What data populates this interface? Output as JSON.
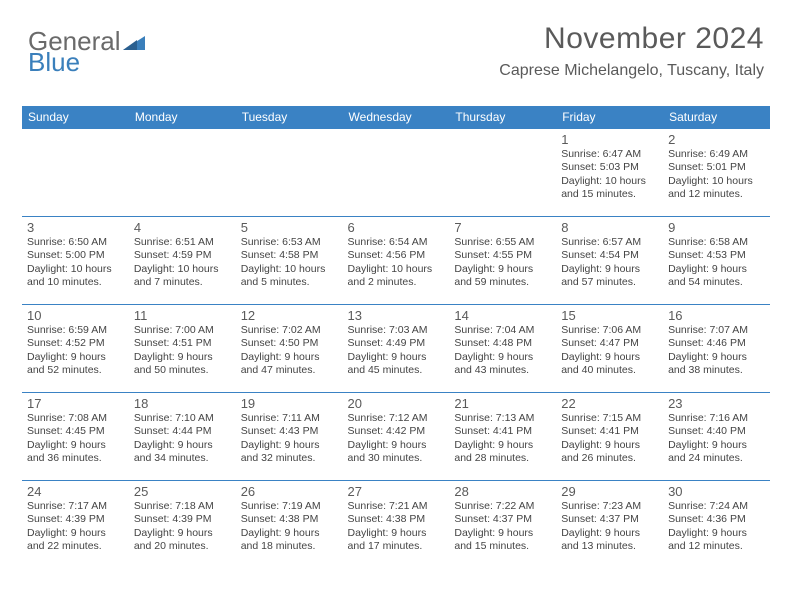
{
  "logo": {
    "text_gray": "General",
    "text_blue": "Blue"
  },
  "header": {
    "month_title": "November 2024",
    "location": "Caprese Michelangelo, Tuscany, Italy"
  },
  "colors": {
    "header_blue": "#3a82c4",
    "logo_blue": "#3a7fbb",
    "text_gray": "#5a5a5a",
    "body_text": "#444444",
    "background": "#ffffff"
  },
  "day_names": [
    "Sunday",
    "Monday",
    "Tuesday",
    "Wednesday",
    "Thursday",
    "Friday",
    "Saturday"
  ],
  "weeks": [
    [
      null,
      null,
      null,
      null,
      null,
      {
        "n": "1",
        "sr": "Sunrise: 6:47 AM",
        "ss": "Sunset: 5:03 PM",
        "dl": "Daylight: 10 hours and 15 minutes."
      },
      {
        "n": "2",
        "sr": "Sunrise: 6:49 AM",
        "ss": "Sunset: 5:01 PM",
        "dl": "Daylight: 10 hours and 12 minutes."
      }
    ],
    [
      {
        "n": "3",
        "sr": "Sunrise: 6:50 AM",
        "ss": "Sunset: 5:00 PM",
        "dl": "Daylight: 10 hours and 10 minutes."
      },
      {
        "n": "4",
        "sr": "Sunrise: 6:51 AM",
        "ss": "Sunset: 4:59 PM",
        "dl": "Daylight: 10 hours and 7 minutes."
      },
      {
        "n": "5",
        "sr": "Sunrise: 6:53 AM",
        "ss": "Sunset: 4:58 PM",
        "dl": "Daylight: 10 hours and 5 minutes."
      },
      {
        "n": "6",
        "sr": "Sunrise: 6:54 AM",
        "ss": "Sunset: 4:56 PM",
        "dl": "Daylight: 10 hours and 2 minutes."
      },
      {
        "n": "7",
        "sr": "Sunrise: 6:55 AM",
        "ss": "Sunset: 4:55 PM",
        "dl": "Daylight: 9 hours and 59 minutes."
      },
      {
        "n": "8",
        "sr": "Sunrise: 6:57 AM",
        "ss": "Sunset: 4:54 PM",
        "dl": "Daylight: 9 hours and 57 minutes."
      },
      {
        "n": "9",
        "sr": "Sunrise: 6:58 AM",
        "ss": "Sunset: 4:53 PM",
        "dl": "Daylight: 9 hours and 54 minutes."
      }
    ],
    [
      {
        "n": "10",
        "sr": "Sunrise: 6:59 AM",
        "ss": "Sunset: 4:52 PM",
        "dl": "Daylight: 9 hours and 52 minutes."
      },
      {
        "n": "11",
        "sr": "Sunrise: 7:00 AM",
        "ss": "Sunset: 4:51 PM",
        "dl": "Daylight: 9 hours and 50 minutes."
      },
      {
        "n": "12",
        "sr": "Sunrise: 7:02 AM",
        "ss": "Sunset: 4:50 PM",
        "dl": "Daylight: 9 hours and 47 minutes."
      },
      {
        "n": "13",
        "sr": "Sunrise: 7:03 AM",
        "ss": "Sunset: 4:49 PM",
        "dl": "Daylight: 9 hours and 45 minutes."
      },
      {
        "n": "14",
        "sr": "Sunrise: 7:04 AM",
        "ss": "Sunset: 4:48 PM",
        "dl": "Daylight: 9 hours and 43 minutes."
      },
      {
        "n": "15",
        "sr": "Sunrise: 7:06 AM",
        "ss": "Sunset: 4:47 PM",
        "dl": "Daylight: 9 hours and 40 minutes."
      },
      {
        "n": "16",
        "sr": "Sunrise: 7:07 AM",
        "ss": "Sunset: 4:46 PM",
        "dl": "Daylight: 9 hours and 38 minutes."
      }
    ],
    [
      {
        "n": "17",
        "sr": "Sunrise: 7:08 AM",
        "ss": "Sunset: 4:45 PM",
        "dl": "Daylight: 9 hours and 36 minutes."
      },
      {
        "n": "18",
        "sr": "Sunrise: 7:10 AM",
        "ss": "Sunset: 4:44 PM",
        "dl": "Daylight: 9 hours and 34 minutes."
      },
      {
        "n": "19",
        "sr": "Sunrise: 7:11 AM",
        "ss": "Sunset: 4:43 PM",
        "dl": "Daylight: 9 hours and 32 minutes."
      },
      {
        "n": "20",
        "sr": "Sunrise: 7:12 AM",
        "ss": "Sunset: 4:42 PM",
        "dl": "Daylight: 9 hours and 30 minutes."
      },
      {
        "n": "21",
        "sr": "Sunrise: 7:13 AM",
        "ss": "Sunset: 4:41 PM",
        "dl": "Daylight: 9 hours and 28 minutes."
      },
      {
        "n": "22",
        "sr": "Sunrise: 7:15 AM",
        "ss": "Sunset: 4:41 PM",
        "dl": "Daylight: 9 hours and 26 minutes."
      },
      {
        "n": "23",
        "sr": "Sunrise: 7:16 AM",
        "ss": "Sunset: 4:40 PM",
        "dl": "Daylight: 9 hours and 24 minutes."
      }
    ],
    [
      {
        "n": "24",
        "sr": "Sunrise: 7:17 AM",
        "ss": "Sunset: 4:39 PM",
        "dl": "Daylight: 9 hours and 22 minutes."
      },
      {
        "n": "25",
        "sr": "Sunrise: 7:18 AM",
        "ss": "Sunset: 4:39 PM",
        "dl": "Daylight: 9 hours and 20 minutes."
      },
      {
        "n": "26",
        "sr": "Sunrise: 7:19 AM",
        "ss": "Sunset: 4:38 PM",
        "dl": "Daylight: 9 hours and 18 minutes."
      },
      {
        "n": "27",
        "sr": "Sunrise: 7:21 AM",
        "ss": "Sunset: 4:38 PM",
        "dl": "Daylight: 9 hours and 17 minutes."
      },
      {
        "n": "28",
        "sr": "Sunrise: 7:22 AM",
        "ss": "Sunset: 4:37 PM",
        "dl": "Daylight: 9 hours and 15 minutes."
      },
      {
        "n": "29",
        "sr": "Sunrise: 7:23 AM",
        "ss": "Sunset: 4:37 PM",
        "dl": "Daylight: 9 hours and 13 minutes."
      },
      {
        "n": "30",
        "sr": "Sunrise: 7:24 AM",
        "ss": "Sunset: 4:36 PM",
        "dl": "Daylight: 9 hours and 12 minutes."
      }
    ]
  ]
}
